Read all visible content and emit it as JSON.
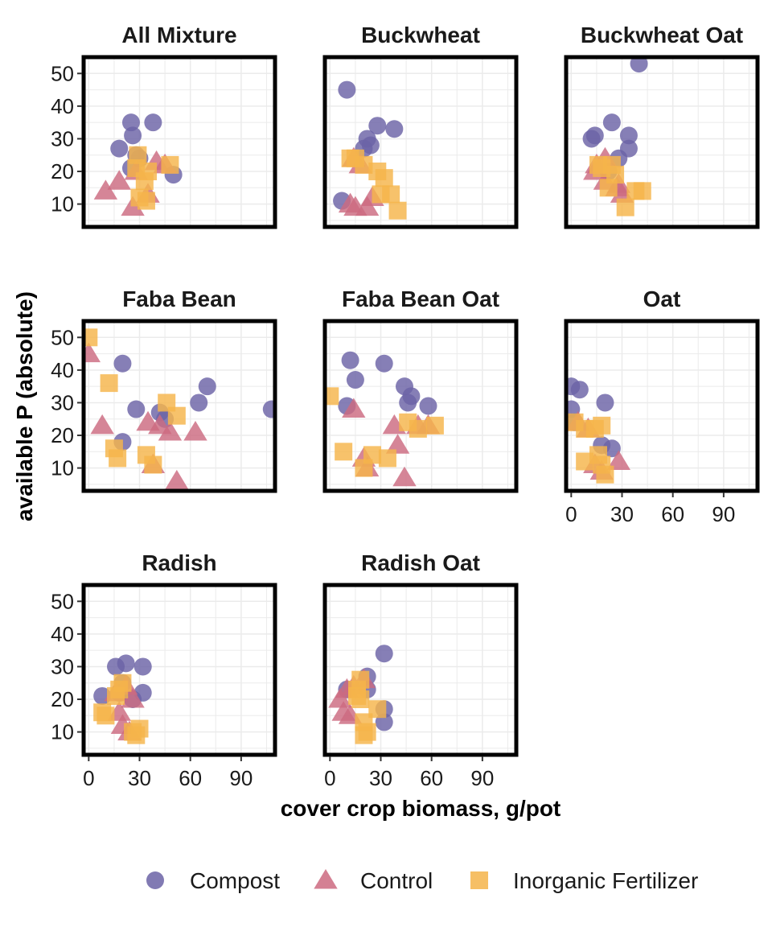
{
  "colors": {
    "Compost": "#6b63a6",
    "Control": "#cc6a80",
    "Inorganic Fertilizer": "#f5b44a"
  },
  "chart_data": {
    "type": "scatter",
    "xlabel": "cover crop biomass, g/pot",
    "ylabel": "available P (absolute)",
    "xlim": [
      -3,
      110
    ],
    "ylim": [
      3,
      55
    ],
    "xticks": [
      0,
      30,
      60,
      90
    ],
    "yticks": [
      10,
      20,
      30,
      40,
      50
    ],
    "grid": true,
    "legend": {
      "position": "bottom",
      "entries": [
        {
          "name": "Compost",
          "shape": "circle"
        },
        {
          "name": "Control",
          "shape": "triangle"
        },
        {
          "name": "Inorganic Fertilizer",
          "shape": "square"
        }
      ]
    },
    "panels": [
      {
        "title": "All Mixture",
        "series": [
          {
            "name": "Compost",
            "points": [
              [
                18,
                27
              ],
              [
                25,
                35
              ],
              [
                38,
                35
              ],
              [
                26,
                31
              ],
              [
                25,
                21
              ],
              [
                28,
                25
              ],
              [
                50,
                19
              ],
              [
                30,
                24
              ]
            ]
          },
          {
            "name": "Control",
            "points": [
              [
                10,
                14
              ],
              [
                18,
                17
              ],
              [
                26,
                9
              ],
              [
                40,
                23
              ],
              [
                35,
                13
              ],
              [
                28,
                20
              ],
              [
                45,
                22
              ]
            ]
          },
          {
            "name": "Inorganic Fertilizer",
            "points": [
              [
                29,
                25
              ],
              [
                28,
                21
              ],
              [
                35,
                20
              ],
              [
                33,
                17
              ],
              [
                30,
                12
              ],
              [
                34,
                11
              ],
              [
                48,
                22
              ]
            ]
          }
        ]
      },
      {
        "title": "Buckwheat",
        "series": [
          {
            "name": "Compost",
            "points": [
              [
                10,
                45
              ],
              [
                28,
                34
              ],
              [
                38,
                33
              ],
              [
                22,
                30
              ],
              [
                24,
                28
              ],
              [
                20,
                27
              ],
              [
                7,
                11
              ]
            ]
          },
          {
            "name": "Control",
            "points": [
              [
                14,
                24
              ],
              [
                18,
                22
              ],
              [
                12,
                10
              ],
              [
                15,
                9
              ],
              [
                22,
                9
              ],
              [
                25,
                12
              ]
            ]
          },
          {
            "name": "Inorganic Fertilizer",
            "points": [
              [
                12,
                24
              ],
              [
                15,
                24
              ],
              [
                20,
                22
              ],
              [
                28,
                20
              ],
              [
                32,
                18
              ],
              [
                30,
                13
              ],
              [
                36,
                13
              ],
              [
                40,
                8
              ]
            ]
          }
        ]
      },
      {
        "title": "Buckwheat Oat",
        "series": [
          {
            "name": "Compost",
            "points": [
              [
                40,
                53
              ],
              [
                24,
                35
              ],
              [
                14,
                31
              ],
              [
                12,
                30
              ],
              [
                34,
                31
              ],
              [
                34,
                27
              ],
              [
                28,
                24
              ],
              [
                22,
                20
              ]
            ]
          },
          {
            "name": "Control",
            "points": [
              [
                20,
                24
              ],
              [
                15,
                22
              ],
              [
                14,
                20
              ],
              [
                20,
                17
              ],
              [
                28,
                16
              ],
              [
                30,
                13
              ],
              [
                27,
                15
              ]
            ]
          },
          {
            "name": "Inorganic Fertilizer",
            "points": [
              [
                16,
                22
              ],
              [
                18,
                21
              ],
              [
                24,
                22
              ],
              [
                26,
                19
              ],
              [
                22,
                15
              ],
              [
                38,
                14
              ],
              [
                42,
                14
              ],
              [
                32,
                9
              ]
            ]
          }
        ]
      },
      {
        "title": "Faba Bean",
        "series": [
          {
            "name": "Compost",
            "points": [
              [
                20,
                42
              ],
              [
                70,
                35
              ],
              [
                108,
                28
              ],
              [
                65,
                30
              ],
              [
                28,
                28
              ],
              [
                45,
                25
              ],
              [
                20,
                18
              ],
              [
                42,
                27
              ]
            ]
          },
          {
            "name": "Control",
            "points": [
              [
                0,
                45
              ],
              [
                8,
                23
              ],
              [
                35,
                24
              ],
              [
                48,
                21
              ],
              [
                63,
                21
              ],
              [
                38,
                11
              ],
              [
                52,
                6
              ],
              [
                42,
                23
              ]
            ]
          },
          {
            "name": "Inorganic Fertilizer",
            "points": [
              [
                0,
                50
              ],
              [
                12,
                36
              ],
              [
                46,
                30
              ],
              [
                52,
                26
              ],
              [
                15,
                16
              ],
              [
                17,
                13
              ],
              [
                34,
                14
              ],
              [
                38,
                11
              ]
            ]
          }
        ]
      },
      {
        "title": "Faba Bean Oat",
        "series": [
          {
            "name": "Compost",
            "points": [
              [
                12,
                43
              ],
              [
                32,
                42
              ],
              [
                15,
                37
              ],
              [
                44,
                35
              ],
              [
                48,
                32
              ],
              [
                46,
                30
              ],
              [
                58,
                29
              ],
              [
                10,
                29
              ]
            ]
          },
          {
            "name": "Control",
            "points": [
              [
                14,
                28
              ],
              [
                38,
                23
              ],
              [
                40,
                17
              ],
              [
                20,
                13
              ],
              [
                22,
                10
              ],
              [
                44,
                7
              ],
              [
                52,
                23
              ],
              [
                58,
                23
              ]
            ]
          },
          {
            "name": "Inorganic Fertilizer",
            "points": [
              [
                0,
                32
              ],
              [
                46,
                24
              ],
              [
                52,
                22
              ],
              [
                62,
                23
              ],
              [
                8,
                15
              ],
              [
                25,
                14
              ],
              [
                34,
                13
              ],
              [
                20,
                10
              ]
            ]
          }
        ]
      },
      {
        "title": "Oat",
        "series": [
          {
            "name": "Compost",
            "points": [
              [
                0,
                35
              ],
              [
                5,
                34
              ],
              [
                20,
                30
              ],
              [
                0,
                28
              ],
              [
                18,
                17
              ],
              [
                24,
                16
              ],
              [
                2,
                24
              ]
            ]
          },
          {
            "name": "Control",
            "points": [
              [
                28,
                12
              ],
              [
                14,
                11
              ],
              [
                18,
                9
              ],
              [
                4,
                24
              ],
              [
                10,
                22
              ]
            ]
          },
          {
            "name": "Inorganic Fertilizer",
            "points": [
              [
                2,
                24
              ],
              [
                8,
                22
              ],
              [
                14,
                22
              ],
              [
                18,
                23
              ],
              [
                8,
                12
              ],
              [
                18,
                11
              ],
              [
                16,
                14
              ],
              [
                20,
                8
              ]
            ]
          }
        ]
      },
      {
        "title": "Radish",
        "series": [
          {
            "name": "Compost",
            "points": [
              [
                16,
                30
              ],
              [
                22,
                31
              ],
              [
                32,
                30
              ],
              [
                8,
                21
              ],
              [
                32,
                22
              ],
              [
                20,
                25
              ],
              [
                26,
                20
              ],
              [
                18,
                22
              ]
            ]
          },
          {
            "name": "Control",
            "points": [
              [
                18,
                16
              ],
              [
                20,
                12
              ],
              [
                24,
                10
              ],
              [
                26,
                20
              ],
              [
                22,
                24
              ],
              [
                16,
                22
              ]
            ]
          },
          {
            "name": "Inorganic Fertilizer",
            "points": [
              [
                8,
                16
              ],
              [
                10,
                15
              ],
              [
                16,
                21
              ],
              [
                20,
                25
              ],
              [
                18,
                23
              ],
              [
                26,
                10
              ],
              [
                30,
                11
              ],
              [
                28,
                9
              ]
            ]
          }
        ]
      },
      {
        "title": "Radish Oat",
        "series": [
          {
            "name": "Compost",
            "points": [
              [
                32,
                34
              ],
              [
                22,
                27
              ],
              [
                22,
                23
              ],
              [
                32,
                17
              ],
              [
                32,
                13
              ],
              [
                10,
                23
              ]
            ]
          },
          {
            "name": "Control",
            "points": [
              [
                6,
                20
              ],
              [
                8,
                16
              ],
              [
                12,
                15
              ],
              [
                10,
                23
              ],
              [
                14,
                24
              ],
              [
                20,
                26
              ]
            ]
          },
          {
            "name": "Inorganic Fertilizer",
            "points": [
              [
                18,
                26
              ],
              [
                16,
                23
              ],
              [
                18,
                20
              ],
              [
                28,
                17
              ],
              [
                20,
                13
              ],
              [
                22,
                10
              ],
              [
                20,
                9
              ],
              [
                16,
                21
              ]
            ]
          }
        ]
      }
    ]
  }
}
